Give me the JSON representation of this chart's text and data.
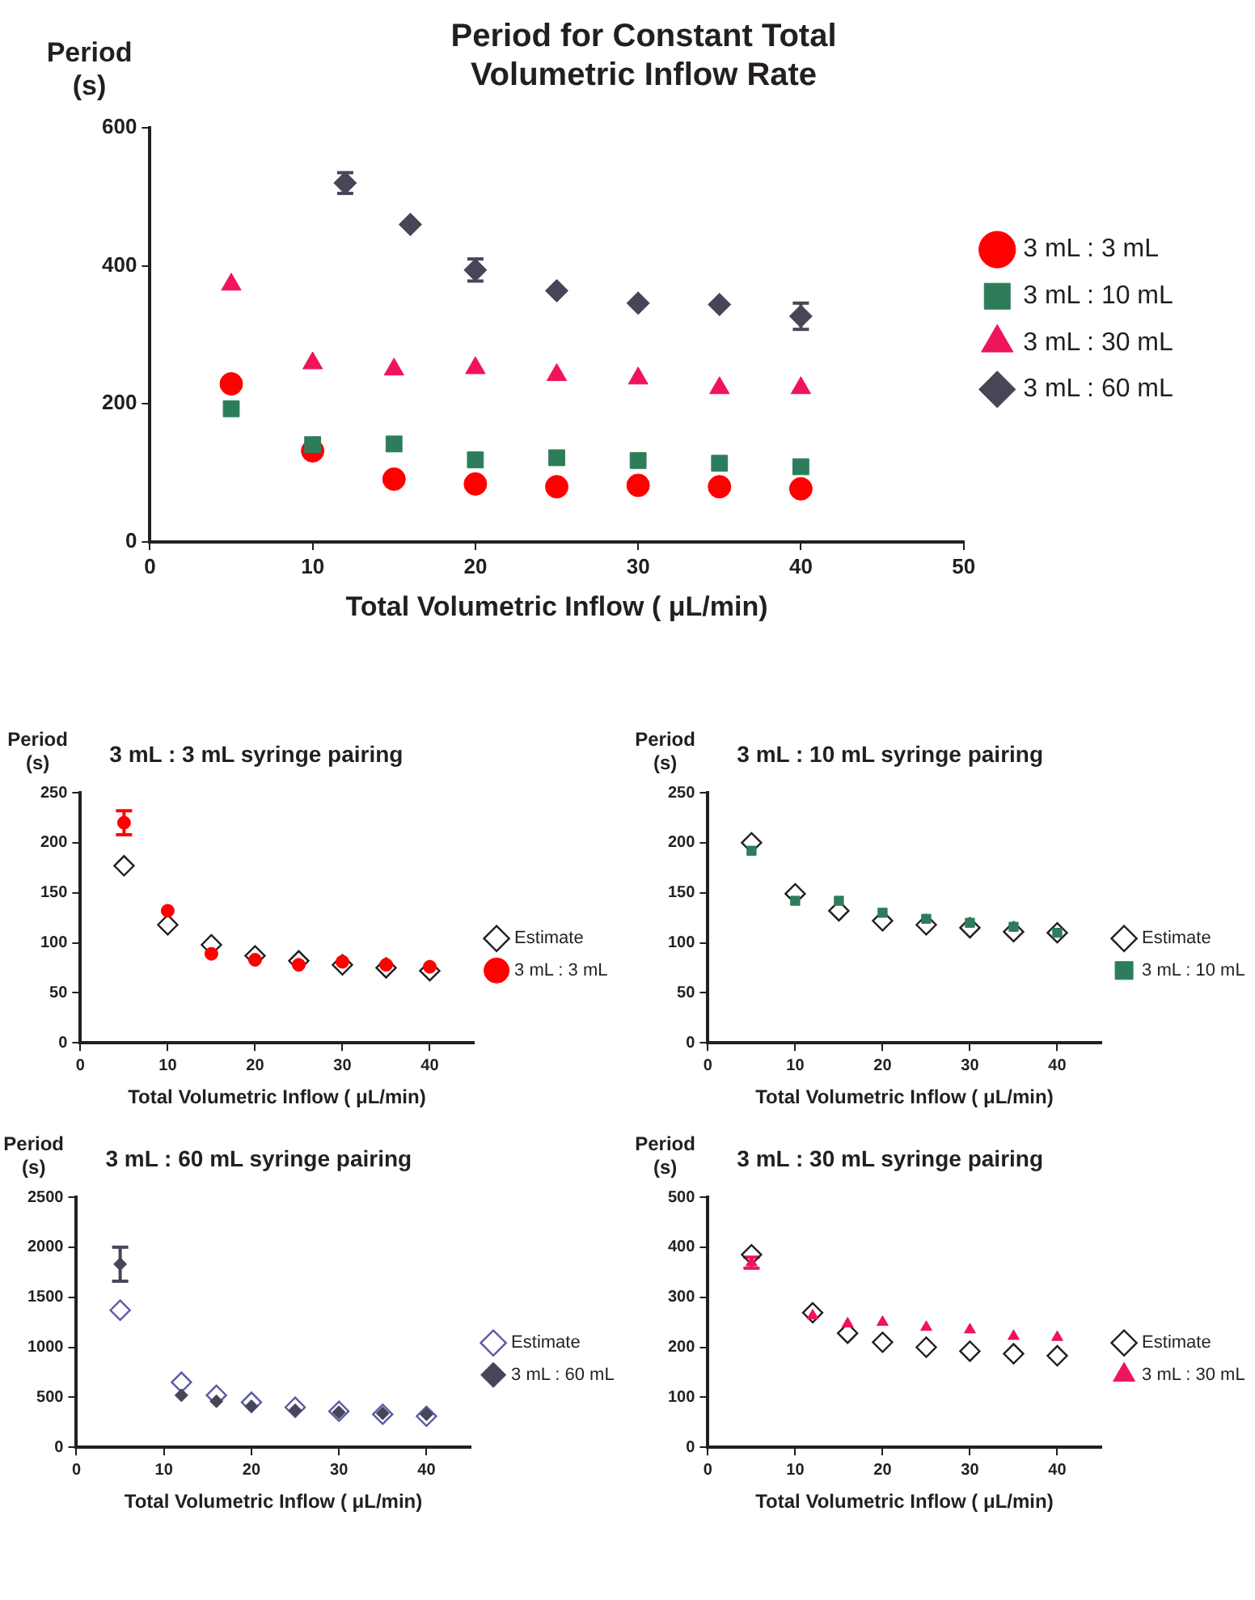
{
  "chart_data": [
    {
      "type": "scatter",
      "title": "Period for Constant Total Volumetric Inflow Rate",
      "xlabel": "Total Volumetric Inflow ( μL/min)",
      "ylabel": "Period (s)",
      "xlim": [
        0,
        50
      ],
      "xticks": [
        0,
        10,
        20,
        30,
        40,
        50
      ],
      "ylim": [
        0,
        600
      ],
      "yticks": [
        0,
        200,
        400,
        600
      ],
      "grid": false,
      "legend": "right",
      "series": [
        {
          "name": "3 mL : 3 mL",
          "color": "#ff0000",
          "marker": "circle",
          "x": [
            5,
            10,
            15,
            20,
            25,
            30,
            35,
            40
          ],
          "values": [
            229,
            132,
            91,
            84,
            80,
            82,
            80,
            77
          ]
        },
        {
          "name": "3 mL : 10 mL",
          "color": "#2e7d5a",
          "marker": "square",
          "x": [
            5,
            10,
            15,
            20,
            25,
            30,
            35,
            40
          ],
          "values": [
            193,
            141,
            142,
            119,
            122,
            118,
            114,
            109
          ]
        },
        {
          "name": "3 mL : 30 mL",
          "color": "#f0145a",
          "marker": "triangle",
          "x": [
            5,
            10,
            15,
            20,
            25,
            30,
            35,
            40
          ],
          "values": [
            373,
            259,
            250,
            252,
            242,
            237,
            223,
            223
          ]
        },
        {
          "name": "3 mL : 60 mL",
          "color": "#474558",
          "marker": "diamond",
          "x": [
            12,
            16,
            20,
            25,
            30,
            35,
            40
          ],
          "values": [
            520,
            460,
            394,
            364,
            346,
            344,
            327
          ],
          "errors": [
            15,
            null,
            16,
            null,
            null,
            null,
            19
          ]
        }
      ]
    },
    {
      "type": "scatter",
      "title": "3 mL : 3 mL syringe pairing",
      "xlabel": "Total Volumetric Inflow ( μL/min)",
      "ylabel": "Period (s)",
      "xlim": [
        0,
        45
      ],
      "xticks": [
        0,
        10,
        20,
        30,
        40
      ],
      "ylim": [
        0,
        250
      ],
      "yticks": [
        0,
        50,
        100,
        150,
        200,
        250
      ],
      "grid": false,
      "legend": "right",
      "series": [
        {
          "name": "Estimate",
          "color": "#231f20",
          "marker": "diamond",
          "x": [
            5,
            10,
            15,
            20,
            25,
            30,
            35,
            40
          ],
          "values": [
            177,
            118,
            98,
            87,
            82,
            78,
            75,
            72
          ]
        },
        {
          "name": "3 mL : 3 mL",
          "color": "#ff0000",
          "marker": "circle",
          "x": [
            5,
            10,
            15,
            20,
            25,
            30,
            35,
            40
          ],
          "values": [
            220,
            132,
            89,
            83,
            78,
            81,
            78,
            76
          ],
          "errors": [
            12,
            null,
            null,
            null,
            null,
            null,
            null,
            null
          ]
        }
      ]
    },
    {
      "type": "scatter",
      "title": "3 mL : 10 mL syringe pairing",
      "xlabel": "Total Volumetric Inflow ( μL/min)",
      "ylabel": "Period (s)",
      "xlim": [
        0,
        45
      ],
      "xticks": [
        0,
        10,
        20,
        30,
        40
      ],
      "ylim": [
        0,
        250
      ],
      "yticks": [
        0,
        50,
        100,
        150,
        200,
        250
      ],
      "grid": false,
      "legend": "right",
      "series": [
        {
          "name": "Estimate",
          "color": "#231f20",
          "marker": "diamond",
          "x": [
            5,
            10,
            15,
            20,
            25,
            30,
            35,
            40
          ],
          "values": [
            200,
            149,
            132,
            122,
            118,
            115,
            111,
            110
          ]
        },
        {
          "name": "3 mL : 10 mL",
          "color": "#2e7d5a",
          "marker": "square",
          "x": [
            5,
            10,
            15,
            20,
            25,
            30,
            35,
            40
          ],
          "values": [
            192,
            142,
            142,
            130,
            124,
            120,
            116,
            110
          ]
        }
      ]
    },
    {
      "type": "scatter",
      "title": "3 mL : 60 mL syringe pairing",
      "xlabel": "Total Volumetric Inflow ( μL/min)",
      "ylabel": "Period (s)",
      "xlim": [
        0,
        45
      ],
      "xticks": [
        0,
        10,
        20,
        30,
        40
      ],
      "ylim": [
        0,
        2500
      ],
      "yticks": [
        0,
        500,
        1000,
        1500,
        2000,
        2500
      ],
      "grid": false,
      "legend": "right",
      "series": [
        {
          "name": "Estimate",
          "color": "#5a5aa8",
          "marker": "diamond",
          "x": [
            5,
            12,
            16,
            20,
            25,
            30,
            35,
            40
          ],
          "values": [
            1370,
            650,
            520,
            450,
            400,
            360,
            330,
            310
          ]
        },
        {
          "name": "3 mL : 60 mL",
          "color": "#474558",
          "marker": "diamond",
          "x": [
            5,
            12,
            16,
            20,
            25,
            30,
            35,
            40
          ],
          "values": [
            1830,
            520,
            460,
            410,
            370,
            350,
            340,
            330
          ],
          "errors": [
            170,
            null,
            null,
            null,
            null,
            null,
            null,
            null
          ]
        }
      ]
    },
    {
      "type": "scatter",
      "title": "3 mL : 30 mL syringe pairing",
      "xlabel": "Total Volumetric Inflow ( μL/min)",
      "ylabel": "Period (s)",
      "xlim": [
        0,
        45
      ],
      "xticks": [
        0,
        10,
        20,
        30,
        40
      ],
      "ylim": [
        0,
        500
      ],
      "yticks": [
        0,
        100,
        200,
        300,
        400,
        500
      ],
      "grid": false,
      "legend": "right",
      "series": [
        {
          "name": "Estimate",
          "color": "#231f20",
          "marker": "diamond",
          "x": [
            5,
            12,
            16,
            20,
            25,
            30,
            35,
            40
          ],
          "values": [
            385,
            269,
            228,
            210,
            200,
            192,
            187,
            183
          ]
        },
        {
          "name": "3 mL : 30 mL",
          "color": "#f0145a",
          "marker": "triangle",
          "x": [
            5,
            12,
            16,
            20,
            25,
            30,
            35,
            40
          ],
          "values": [
            369,
            263,
            247,
            250,
            240,
            235,
            222,
            220
          ],
          "errors": [
            11,
            null,
            null,
            null,
            null,
            null,
            null,
            null
          ]
        }
      ]
    }
  ]
}
